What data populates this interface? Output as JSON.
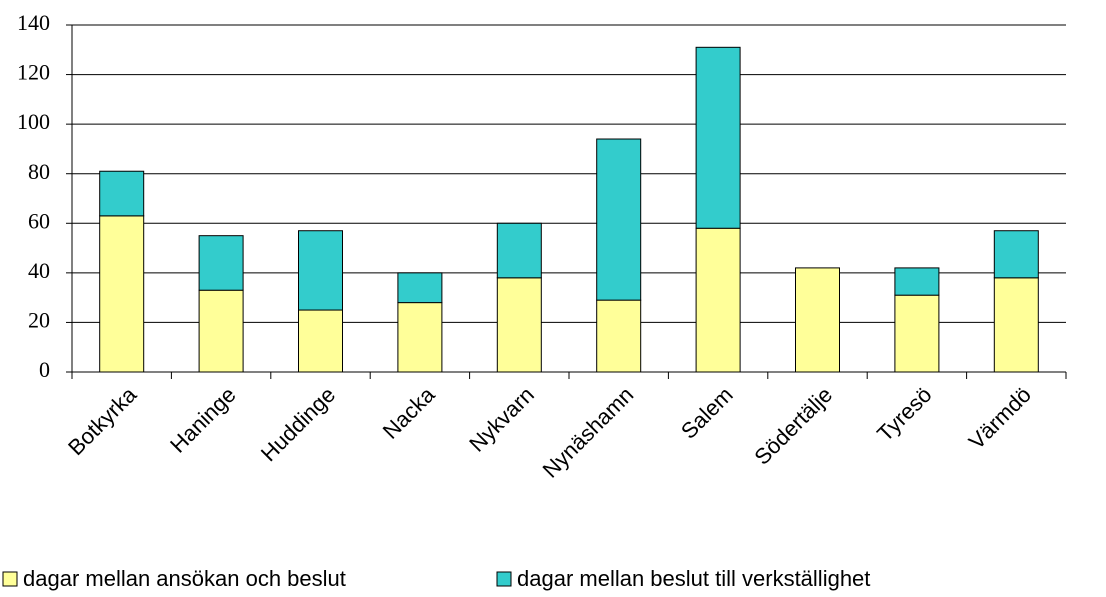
{
  "chart_data": {
    "type": "stacked_bar",
    "categories": [
      "Botkyrka",
      "Haninge",
      "Huddinge",
      "Nacka",
      "Nykvarn",
      "Nynäshamn",
      "Salem",
      "Södertälje",
      "Tyresö",
      "Värmdö"
    ],
    "series": [
      {
        "name": "dagar mellan ansökan och beslut",
        "color": "#ffff99",
        "values": [
          63,
          33,
          25,
          28,
          38,
          29,
          58,
          42,
          31,
          38
        ]
      },
      {
        "name": "dagar mellan beslut till verkställighet",
        "color": "#33cccc",
        "values": [
          18,
          22,
          32,
          12,
          22,
          65,
          73,
          0,
          11,
          19
        ]
      }
    ],
    "ylim": [
      0,
      140
    ],
    "yticks": [
      0,
      20,
      40,
      60,
      80,
      100,
      120,
      140
    ],
    "grid": true
  }
}
